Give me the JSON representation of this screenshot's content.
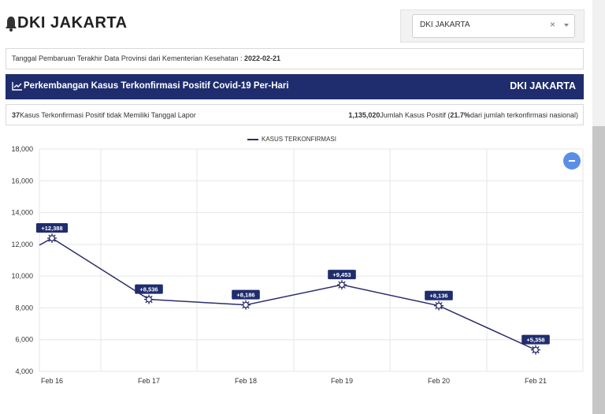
{
  "header": {
    "title": "DKI JAKARTA",
    "bell_icon": "bell-icon"
  },
  "province_select": {
    "value": "DKI JAKARTA",
    "clear_glyph": "×"
  },
  "update_info": {
    "label": "Tanggal Pembaruan Terakhir Data Provinsi dari Kementerian Kesehatan : ",
    "date": "2022-02-21"
  },
  "banner": {
    "title": "Perkembangan Kasus Terkonfirmasi Positif Covid-19 Per-Hari",
    "region": "DKI JAKARTA",
    "icon": "line-chart-icon",
    "color": "#1f2d6e"
  },
  "stats": {
    "no_date_count": "37",
    "no_date_label": "Kasus Terkonfirmasi Positif tidak Memiliki Tanggal Lapor",
    "total_count": "1,135,020",
    "total_label": "Jumlah Kasus Positif (",
    "total_pct": "21.7%",
    "total_suffix": "dari jumlah terkonfirmasi nasional)"
  },
  "chart_data": {
    "type": "line",
    "categories": [
      "Feb 16",
      "Feb 17",
      "Feb 18",
      "Feb 19",
      "Feb 20",
      "Feb 21"
    ],
    "series": [
      {
        "name": "KASUS TERKONFIRMASI",
        "values": [
          12388,
          8536,
          8186,
          9453,
          8136,
          5358
        ],
        "color": "#2b2d6b"
      }
    ],
    "data_labels": [
      "+12,388",
      "+8,536",
      "+8,186",
      "+9,453",
      "+8,136",
      "+5,358"
    ],
    "y_ticks": [
      "4,000",
      "6,000",
      "8,000",
      "10,000",
      "12,000",
      "14,000",
      "16,000",
      "18,000"
    ],
    "ylim": [
      4000,
      18000
    ],
    "left_edge_value": 11950,
    "grid": true,
    "legend": "top-center",
    "xlabel": "",
    "ylabel": ""
  }
}
